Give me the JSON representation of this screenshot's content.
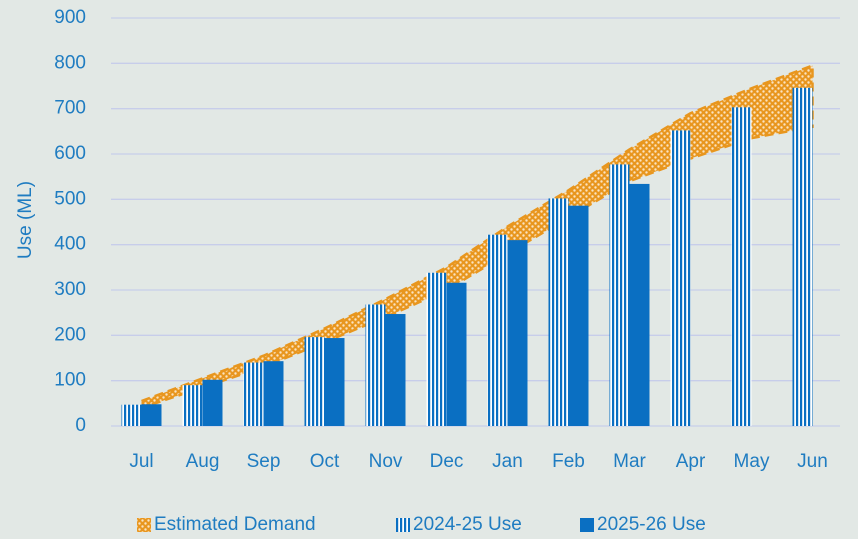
{
  "chart_data": {
    "type": "bar-band",
    "y_label": "Use (ML)",
    "categories": [
      "Jul",
      "Aug",
      "Sep",
      "Oct",
      "Nov",
      "Dec",
      "Jan",
      "Feb",
      "Mar",
      "Apr",
      "May",
      "Jun"
    ],
    "band": {
      "name": "Estimated Demand",
      "color": "#e8961e",
      "lower": [
        40,
        85,
        130,
        185,
        240,
        300,
        380,
        460,
        540,
        590,
        635,
        660
      ],
      "upper": [
        55,
        105,
        155,
        215,
        280,
        350,
        440,
        520,
        610,
        690,
        745,
        795
      ]
    },
    "series": [
      {
        "name": "2024-25 Use",
        "color": "#0a6fc2",
        "pattern": "stripes",
        "values": [
          47,
          90,
          140,
          196,
          268,
          338,
          422,
          502,
          577,
          652,
          703,
          746
        ]
      },
      {
        "name": "2025-26 Use",
        "color": "#0a6fc2",
        "pattern": "solid",
        "values": [
          48,
          102,
          143,
          194,
          247,
          316,
          410,
          486,
          534,
          null,
          null,
          null
        ]
      }
    ],
    "ylim": [
      0,
      900
    ],
    "yticks": [
      0,
      100,
      200,
      300,
      400,
      500,
      600,
      700,
      800,
      900
    ],
    "grid": true,
    "legend": "bottom"
  }
}
